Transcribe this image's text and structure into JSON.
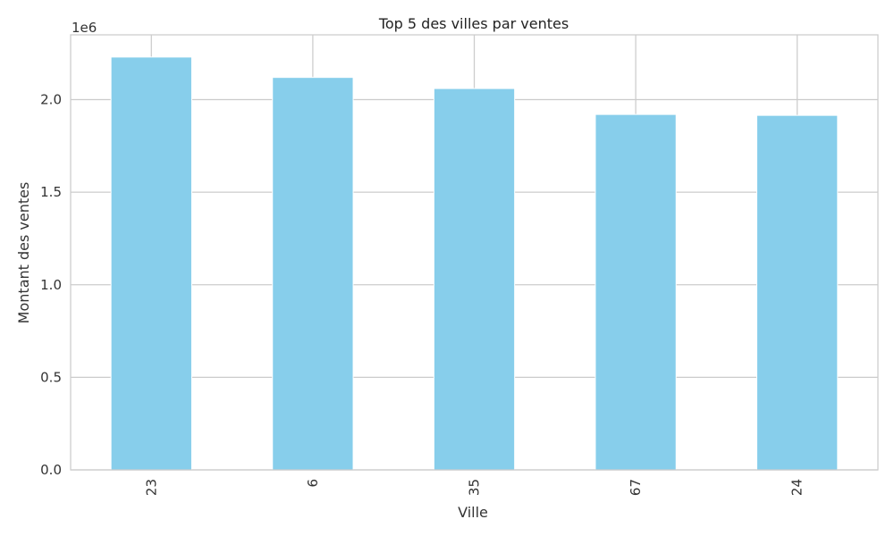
{
  "chart_data": {
    "type": "bar",
    "title": "Top 5 des villes par ventes",
    "xlabel": "Ville",
    "ylabel": "Montant des ventes",
    "y_offset_label": "1e6",
    "categories": [
      "23",
      "6",
      "35",
      "67",
      "24"
    ],
    "values": [
      2230000,
      2120000,
      2060000,
      1920000,
      1915000
    ],
    "ylim": [
      0,
      2350000
    ],
    "yticks": [
      0,
      500000,
      1000000,
      1500000,
      2000000
    ],
    "ytick_labels": [
      "0.0",
      "0.5",
      "1.0",
      "1.5",
      "2.0"
    ],
    "bar_color": "#87CEEB",
    "grid": true,
    "legend": "none"
  }
}
